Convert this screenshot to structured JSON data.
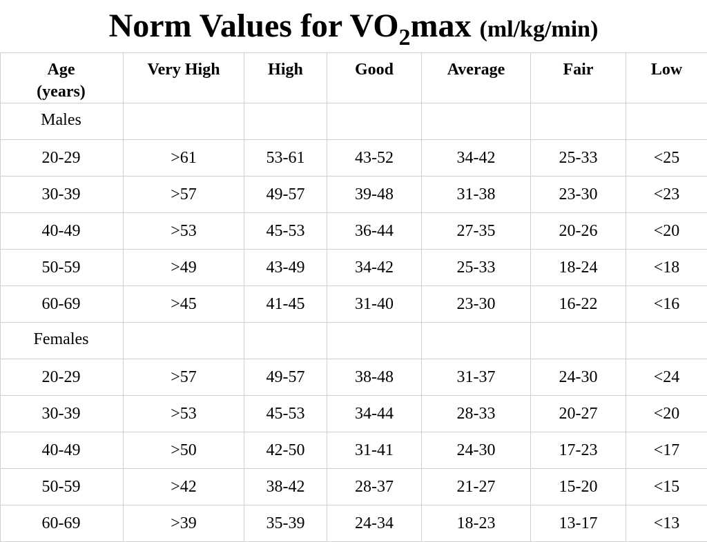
{
  "title": {
    "prefix": "Norm Values for VO",
    "subscript": "2",
    "suffix": "max",
    "unit": "(ml/kg/min)"
  },
  "table": {
    "headers": {
      "age_line1": "Age",
      "age_line2": "(years)",
      "very_high": "Very High",
      "high": "High",
      "good": "Good",
      "average": "Average",
      "fair": "Fair",
      "low": "Low"
    },
    "males": {
      "label": "Males",
      "rows": [
        [
          "20-29",
          ">61",
          "53-61",
          "43-52",
          "34-42",
          "25-33",
          "<25"
        ],
        [
          "30-39",
          ">57",
          "49-57",
          "39-48",
          "31-38",
          "23-30",
          "<23"
        ],
        [
          "40-49",
          ">53",
          "45-53",
          "36-44",
          "27-35",
          "20-26",
          "<20"
        ],
        [
          "50-59",
          ">49",
          "43-49",
          "34-42",
          "25-33",
          "18-24",
          "<18"
        ],
        [
          "60-69",
          ">45",
          "41-45",
          "31-40",
          "23-30",
          "16-22",
          "<16"
        ]
      ]
    },
    "females": {
      "label": "Females",
      "rows": [
        [
          "20-29",
          ">57",
          "49-57",
          "38-48",
          "31-37",
          "24-30",
          "<24"
        ],
        [
          "30-39",
          ">53",
          "45-53",
          "34-44",
          "28-33",
          "20-27",
          "<20"
        ],
        [
          "40-49",
          ">50",
          "42-50",
          "31-41",
          "24-30",
          "17-23",
          "<17"
        ],
        [
          "50-59",
          ">42",
          "38-42",
          "28-37",
          "21-27",
          "15-20",
          "<15"
        ],
        [
          "60-69",
          ">39",
          "35-39",
          "24-34",
          "18-23",
          "13-17",
          "<13"
        ]
      ]
    }
  }
}
